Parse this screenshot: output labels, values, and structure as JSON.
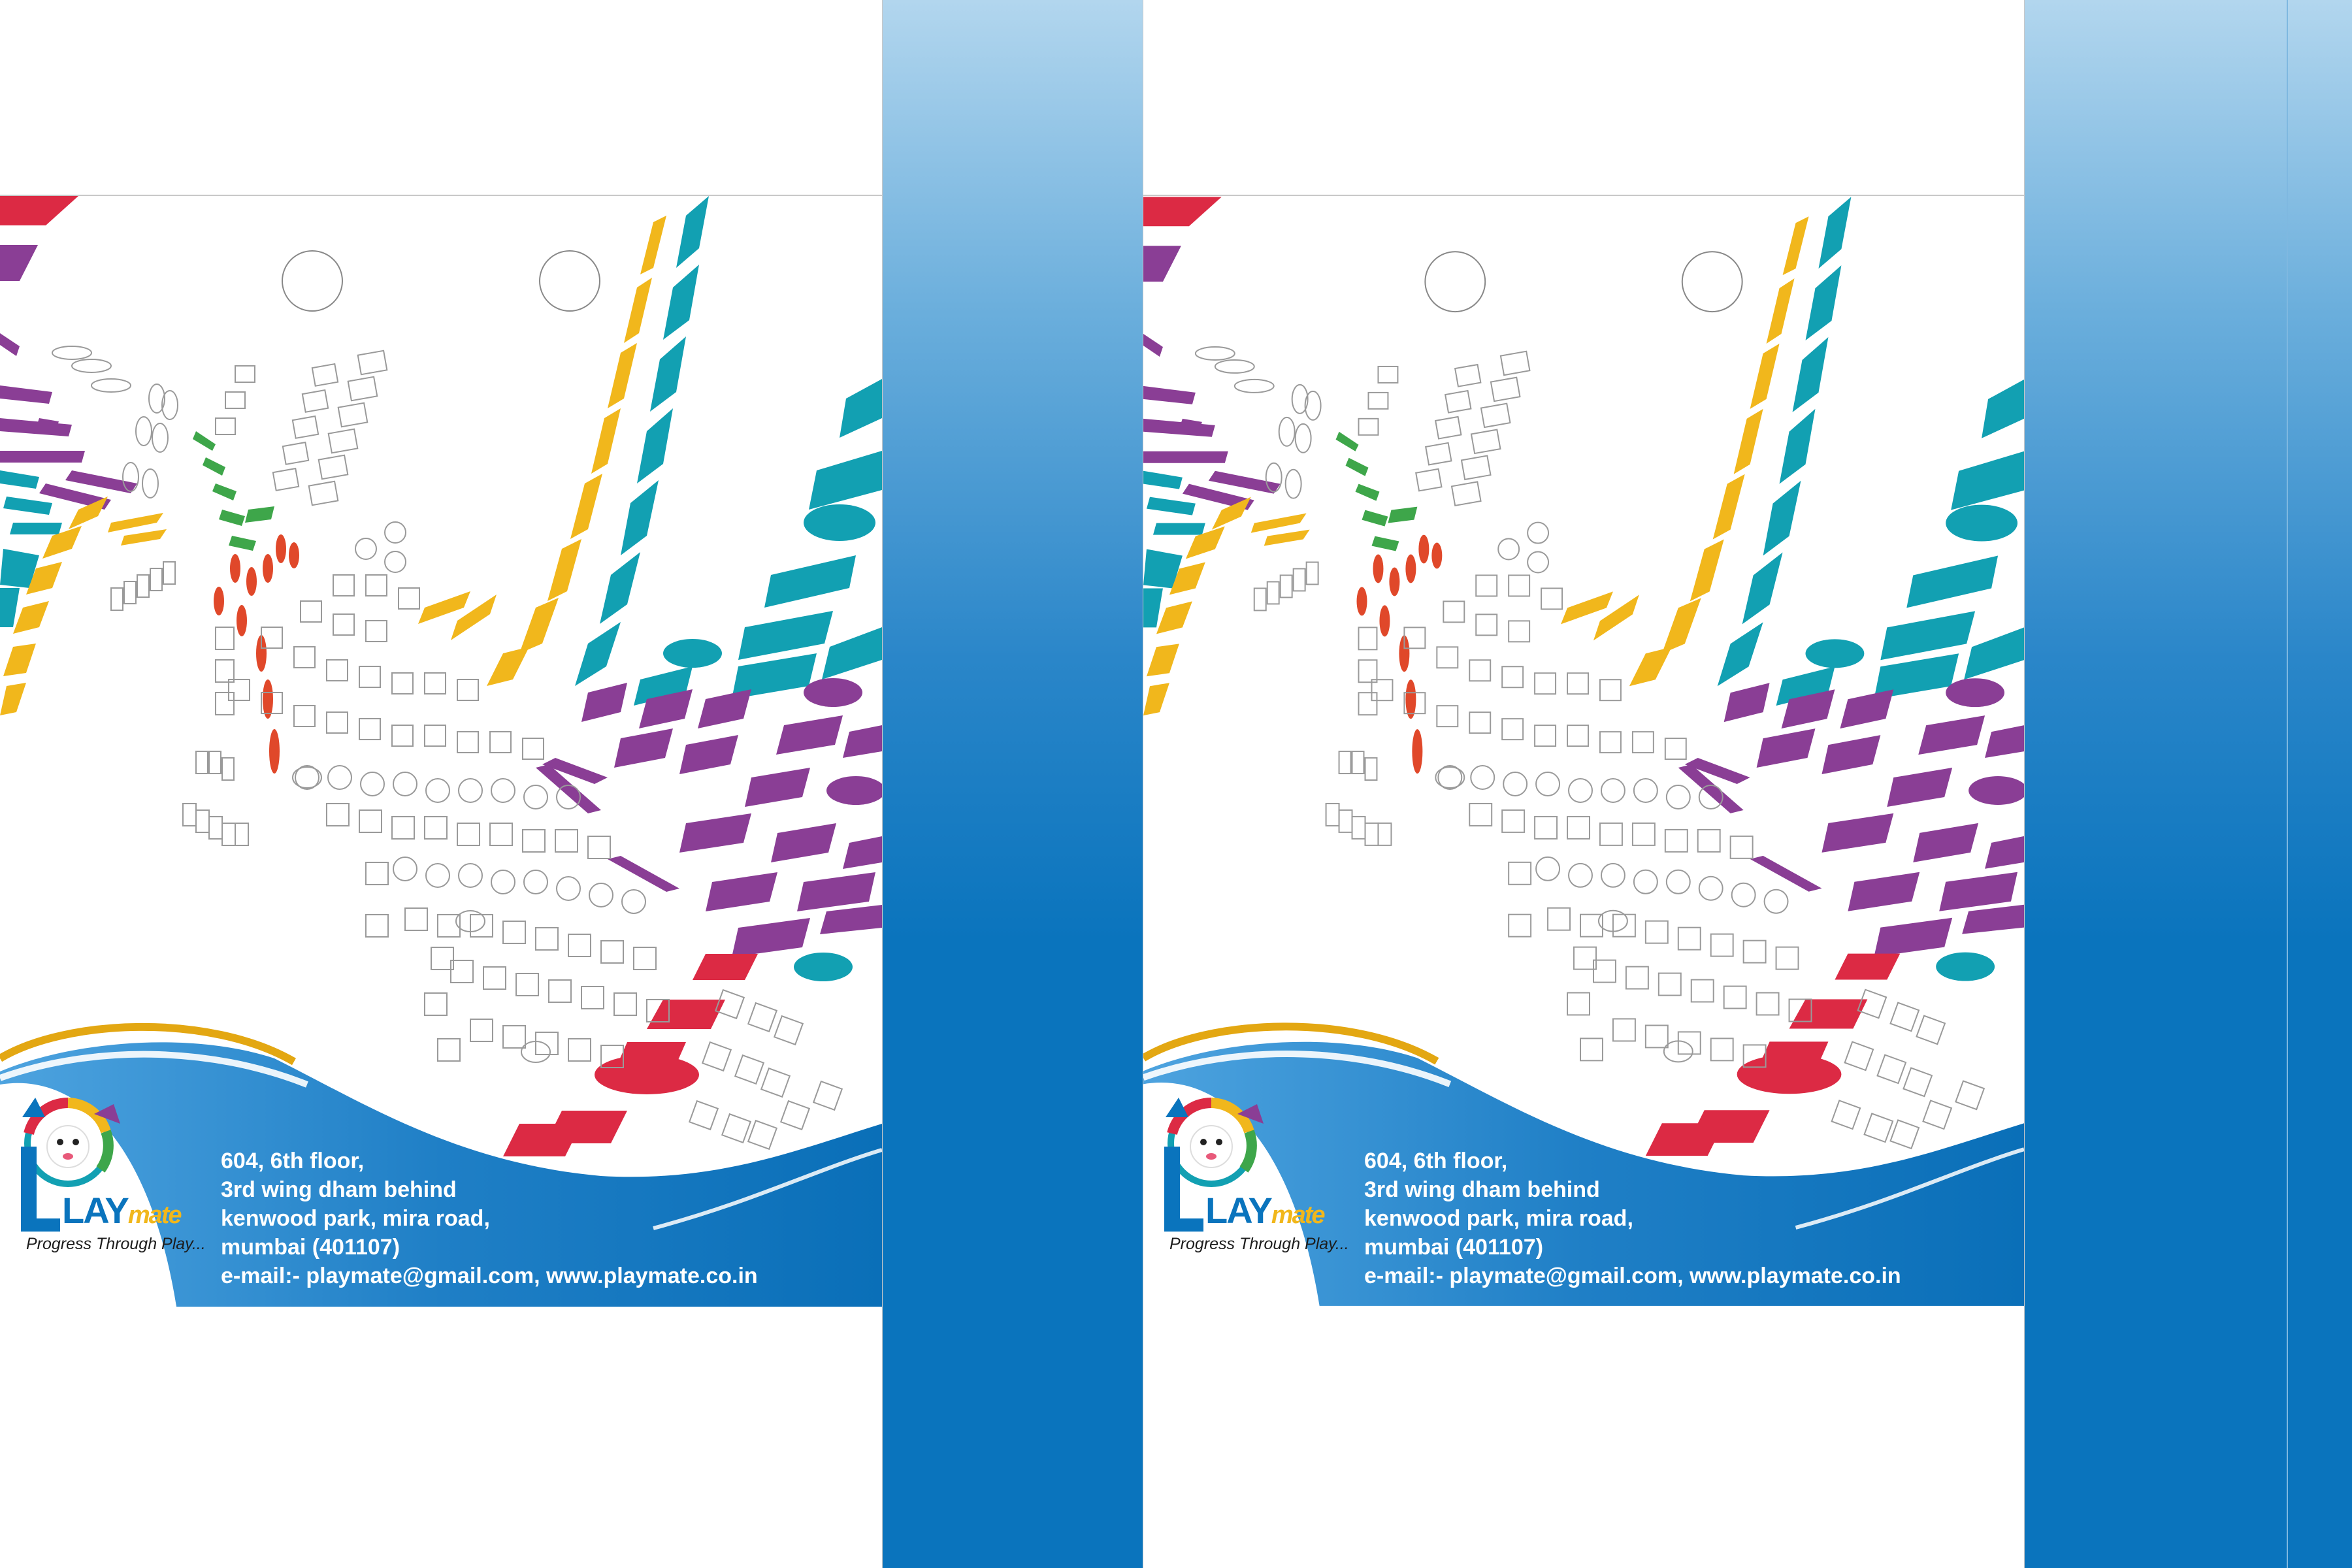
{
  "brand": {
    "name_prefix": "LAY",
    "name_suffix": "mate",
    "tagline": "Progress Through Play..."
  },
  "contact": {
    "line1": "604, 6th floor,",
    "line2": "3rd wing dham behind",
    "line3": "kenwood park, mira road,",
    "line4": "mumbai (401107)",
    "line5": "e-mail:- playmate@gmail.com, www.playmate.co.in"
  },
  "colors": {
    "red": "#dc2a44",
    "purple": "#8a3e95",
    "teal": "#12a0b2",
    "yellow": "#f1b71c",
    "green": "#3ea64a",
    "orange_red": "#e0482a",
    "blue_dark": "#0a74bd",
    "blue_light": "#b2d6ee",
    "gold": "#e3a712"
  },
  "icons": [
    "playmate-logo-icon",
    "hang-hole-icon"
  ]
}
